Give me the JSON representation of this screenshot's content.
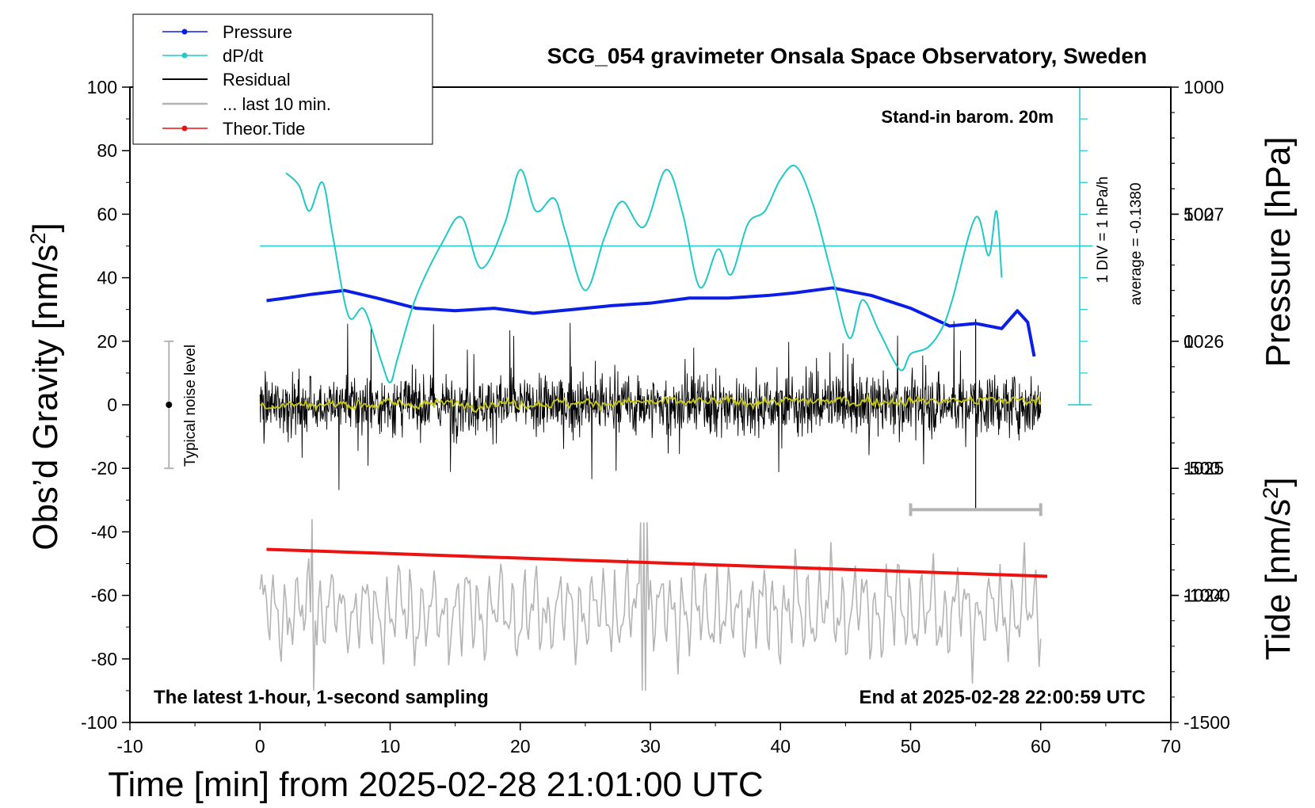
{
  "chart_data": {
    "type": "line",
    "title": "SCG_054 gravimeter Onsala Space Observatory, Sweden",
    "xlabel": "Time [min] from 2025-02-28 21:01:00 UTC",
    "ylabel_left": "Obs’d Gravity [nm/s",
    "ylabel_right_top": "Pressure [hPa]",
    "ylabel_right_bottom": "Tide [nm/s",
    "superscript": "2",
    "xlim": [
      -10,
      70
    ],
    "ylim_left": [
      -100,
      100
    ],
    "ylim_pressure_hpa": [
      1023,
      1028
    ],
    "ylim_tide": [
      -1500,
      1000
    ],
    "x_ticks": [
      -10,
      0,
      10,
      20,
      30,
      40,
      50,
      60,
      70
    ],
    "y_ticks_left": [
      -100,
      -80,
      -60,
      -40,
      -20,
      0,
      20,
      40,
      60,
      80,
      100
    ],
    "pressure_ticks": [
      1024,
      1025,
      1026,
      1027
    ],
    "tide_ticks": [
      -1500,
      -1000,
      -500,
      0,
      500,
      1000
    ],
    "annotations": {
      "barometer": "Stand-in barom. 20m",
      "dpdt_scale": "1 DIV = 1 hPa/h",
      "dpdt_average": "average = -0.1380",
      "noise": "Typical noise level",
      "latest": "The latest 1-hour, 1-second sampling",
      "end": "End at 2025-02-28 22:00:59 UTC"
    },
    "legend": [
      "Pressure",
      "dP/dt",
      "Residual",
      "... last 10 min.",
      "Theor.Tide"
    ],
    "colors": {
      "pressure": "#0a1ee6",
      "dpdt": "#20c8c8",
      "residual": "#000000",
      "smoothed": "#c8c814",
      "gray": "#b4b4b4",
      "tide": "#ee1111"
    },
    "pressure_series": {
      "x": [
        0.5,
        2,
        4,
        6.5,
        9,
        12,
        15,
        18,
        21,
        24,
        27,
        30,
        33,
        36,
        39,
        41,
        44,
        47,
        50,
        53,
        55,
        57,
        58.2,
        59,
        59.5
      ],
      "values": [
        1026.32,
        1026.34,
        1026.37,
        1026.4,
        1026.34,
        1026.26,
        1026.24,
        1026.26,
        1026.22,
        1026.25,
        1026.28,
        1026.3,
        1026.34,
        1026.34,
        1026.36,
        1026.38,
        1026.42,
        1026.36,
        1026.26,
        1026.12,
        1026.14,
        1026.1,
        1026.24,
        1026.15,
        1025.88
      ]
    },
    "dpdt_series": {
      "x": [
        2,
        3,
        3.8,
        4.8,
        5.6,
        6.8,
        8,
        9.3,
        10,
        10.6,
        12,
        14,
        15.5,
        17,
        18.8,
        20,
        21.2,
        22.6,
        23.5,
        25,
        26.5,
        27.8,
        29.5,
        31.2,
        32.5,
        33.8,
        35.2,
        36.2,
        37.5,
        38.8,
        40,
        41.2,
        42.5,
        44,
        45.3,
        46.3,
        47.6,
        49.2,
        50,
        51.3,
        52.4,
        53.2,
        55,
        56,
        56.6,
        57
      ],
      "values": [
        2.3,
        1.9,
        1.1,
        2.0,
        0.3,
        -2.2,
        -2.0,
        -3.6,
        -4.3,
        -3.5,
        -1.6,
        0.1,
        0.9,
        -0.7,
        0.7,
        2.4,
        1.1,
        1.5,
        0.4,
        -1.4,
        0.3,
        1.4,
        0.6,
        2.4,
        1.0,
        -1.3,
        -0.1,
        -0.9,
        0.7,
        1.1,
        2.1,
        2.5,
        1.3,
        -1.0,
        -2.9,
        -1.7,
        -2.7,
        -3.9,
        -3.4,
        -3.2,
        -2.6,
        -1.7,
        0.9,
        -0.3,
        1.1,
        -1.0
      ]
    },
    "dpdt_axis": {
      "zero_value": 50,
      "value_per_div": 10,
      "x_position": 63,
      "top": 100,
      "bottom": 0
    },
    "theoretical_tide": {
      "x": [
        0.5,
        60.5
      ],
      "values": [
        -45.5,
        -54
      ]
    },
    "residual_series": {
      "x_start": 0,
      "x_end": 60,
      "typical_amplitude": 10,
      "outliers": [
        {
          "x": 55,
          "value": -33
        }
      ]
    },
    "last_10_min_series": {
      "x_start": 0,
      "x_end": 60,
      "center_value": -65,
      "typical_amplitude": 10,
      "peak_min": -90,
      "peak_max": -35
    },
    "noise_level_bar": {
      "x": -7,
      "low": -20,
      "high": 20,
      "center": 0
    },
    "last_10_min_bracket": {
      "x_start": 50,
      "x_end": 60,
      "value": -33
    }
  }
}
